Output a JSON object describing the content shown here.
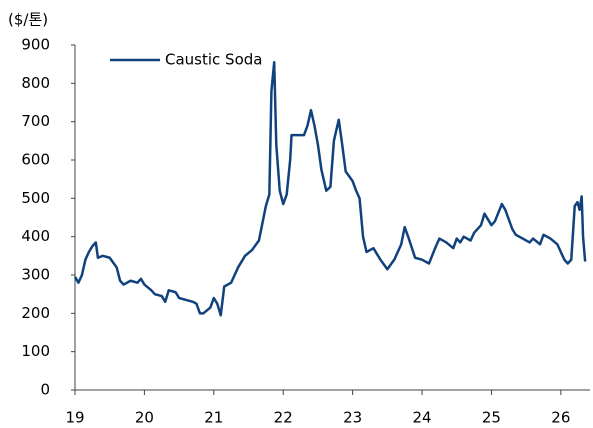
{
  "chart_data": {
    "type": "line",
    "y_label": "($/톤)",
    "series": [
      {
        "name": "Caustic Soda",
        "color": "#11427e",
        "x": [
          19.0,
          19.05,
          19.1,
          19.15,
          19.2,
          19.25,
          19.3,
          19.33,
          19.4,
          19.5,
          19.6,
          19.65,
          19.7,
          19.8,
          19.9,
          19.95,
          20.0,
          20.1,
          20.15,
          20.25,
          20.3,
          20.35,
          20.45,
          20.5,
          20.6,
          20.7,
          20.75,
          20.8,
          20.85,
          20.95,
          21.0,
          21.05,
          21.1,
          21.15,
          21.25,
          21.35,
          21.45,
          21.55,
          21.65,
          21.75,
          21.8,
          21.83,
          21.87,
          21.9,
          21.95,
          22.0,
          22.05,
          22.1,
          22.12,
          22.3,
          22.35,
          22.4,
          22.45,
          22.5,
          22.55,
          22.62,
          22.68,
          22.73,
          22.8,
          22.85,
          22.9,
          23.0,
          23.05,
          23.1,
          23.15,
          23.2,
          23.3,
          23.4,
          23.5,
          23.6,
          23.7,
          23.75,
          23.8,
          23.9,
          24.0,
          24.1,
          24.2,
          24.25,
          24.35,
          24.45,
          24.5,
          24.55,
          24.6,
          24.7,
          24.75,
          24.85,
          24.9,
          25.0,
          25.05,
          25.15,
          25.2,
          25.3,
          25.35,
          25.45,
          25.55,
          25.6,
          25.7,
          25.75,
          25.85,
          25.95,
          26.05,
          26.1,
          26.15,
          26.2,
          26.24,
          26.27,
          26.3,
          26.32,
          26.35
        ],
        "values": [
          295,
          280,
          300,
          340,
          360,
          375,
          385,
          345,
          350,
          345,
          320,
          285,
          275,
          285,
          280,
          290,
          275,
          260,
          250,
          245,
          230,
          260,
          255,
          240,
          235,
          230,
          225,
          200,
          200,
          215,
          240,
          225,
          195,
          270,
          280,
          320,
          350,
          365,
          390,
          480,
          510,
          780,
          855,
          640,
          520,
          485,
          510,
          600,
          665,
          665,
          690,
          730,
          690,
          640,
          575,
          520,
          530,
          650,
          705,
          640,
          570,
          545,
          520,
          500,
          400,
          360,
          370,
          340,
          315,
          340,
          380,
          425,
          400,
          345,
          340,
          330,
          375,
          395,
          385,
          370,
          395,
          385,
          400,
          390,
          410,
          430,
          460,
          430,
          440,
          485,
          470,
          420,
          405,
          395,
          385,
          395,
          380,
          405,
          395,
          380,
          340,
          330,
          340,
          480,
          490,
          470,
          505,
          400,
          335
        ]
      }
    ],
    "xlim": [
      19,
      26.42
    ],
    "xticks": [
      19,
      20,
      21,
      22,
      23,
      24,
      25,
      26
    ],
    "ylim": [
      0,
      900
    ],
    "yticks": [
      0,
      100,
      200,
      300,
      400,
      500,
      600,
      700,
      800,
      900
    ],
    "legend": "top-left"
  }
}
